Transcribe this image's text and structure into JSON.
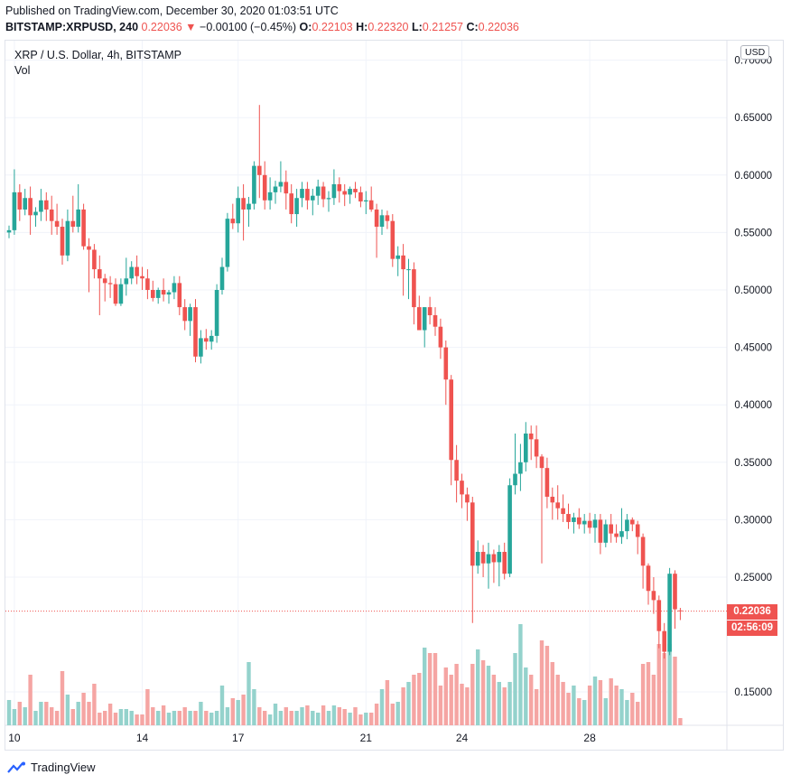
{
  "header": {
    "published": "Published on TradingView.com, December 30, 2020 01:03:51 UTC",
    "symbol_line": "BITSTAMP:XRPUSD, 240",
    "last": "0.22036",
    "change": "−0.00100 (−0.45%)",
    "o_label": "O:",
    "o_value": "0.22103",
    "h_label": "H:",
    "h_value": "0.22320",
    "l_label": "L:",
    "l_value": "0.21257",
    "c_label": "C:",
    "c_value": "0.22036"
  },
  "chart_title": "XRP / U.S. Dollar, 4h, BITSTAMP",
  "volume_label": "Vol",
  "currency_button": "USD",
  "price_tag": "0.22036",
  "countdown_tag": "02:56:09",
  "logo_text": "TradingView",
  "colors": {
    "up": "#26a69a",
    "down": "#ef5350",
    "up_vol": "#94d2cc",
    "down_vol": "#f5a5a3",
    "grid": "#f0f3fa"
  },
  "chart_data": {
    "type": "candlestick",
    "title": "XRP / U.S. Dollar, 4h, BITSTAMP",
    "y_ticks": [
      "0.70000",
      "0.65000",
      "0.60000",
      "0.55000",
      "0.50000",
      "0.45000",
      "0.40000",
      "0.35000",
      "0.30000",
      "0.25000",
      "0.15000"
    ],
    "y_tick_values": [
      0.7,
      0.65,
      0.6,
      0.55,
      0.5,
      0.45,
      0.4,
      0.35,
      0.3,
      0.25,
      0.15
    ],
    "x_ticks": [
      "10",
      "14",
      "17",
      "21",
      "24",
      "28"
    ],
    "x_tick_bar_index": [
      1,
      25,
      43,
      67,
      85,
      109
    ],
    "ylim": [
      0.124,
      0.712
    ],
    "last_price": 0.22036,
    "candles": [
      [
        0.55,
        0.556,
        0.545,
        0.552
      ],
      [
        0.552,
        0.605,
        0.548,
        0.585
      ],
      [
        0.585,
        0.592,
        0.56,
        0.57
      ],
      [
        0.57,
        0.588,
        0.565,
        0.58
      ],
      [
        0.58,
        0.59,
        0.548,
        0.565
      ],
      [
        0.565,
        0.572,
        0.555,
        0.568
      ],
      [
        0.568,
        0.588,
        0.56,
        0.578
      ],
      [
        0.578,
        0.585,
        0.56,
        0.57
      ],
      [
        0.57,
        0.582,
        0.548,
        0.56
      ],
      [
        0.56,
        0.575,
        0.548,
        0.555
      ],
      [
        0.555,
        0.562,
        0.522,
        0.53
      ],
      [
        0.53,
        0.57,
        0.525,
        0.56
      ],
      [
        0.56,
        0.582,
        0.55,
        0.555
      ],
      [
        0.555,
        0.592,
        0.55,
        0.57
      ],
      [
        0.57,
        0.575,
        0.535,
        0.538
      ],
      [
        0.538,
        0.545,
        0.498,
        0.535
      ],
      [
        0.535,
        0.54,
        0.51,
        0.518
      ],
      [
        0.518,
        0.53,
        0.478,
        0.51
      ],
      [
        0.51,
        0.514,
        0.49,
        0.506
      ],
      [
        0.506,
        0.512,
        0.493,
        0.505
      ],
      [
        0.505,
        0.51,
        0.486,
        0.488
      ],
      [
        0.488,
        0.51,
        0.486,
        0.505
      ],
      [
        0.505,
        0.528,
        0.495,
        0.51
      ],
      [
        0.51,
        0.525,
        0.505,
        0.52
      ],
      [
        0.52,
        0.53,
        0.505,
        0.512
      ],
      [
        0.512,
        0.52,
        0.5,
        0.51
      ],
      [
        0.51,
        0.518,
        0.492,
        0.5
      ],
      [
        0.5,
        0.508,
        0.49,
        0.493
      ],
      [
        0.493,
        0.502,
        0.488,
        0.5
      ],
      [
        0.5,
        0.51,
        0.49,
        0.496
      ],
      [
        0.496,
        0.5,
        0.488,
        0.498
      ],
      [
        0.498,
        0.512,
        0.492,
        0.506
      ],
      [
        0.506,
        0.512,
        0.478,
        0.485
      ],
      [
        0.485,
        0.492,
        0.465,
        0.473
      ],
      [
        0.473,
        0.488,
        0.46,
        0.485
      ],
      [
        0.485,
        0.492,
        0.437,
        0.442
      ],
      [
        0.442,
        0.465,
        0.436,
        0.458
      ],
      [
        0.458,
        0.466,
        0.448,
        0.455
      ],
      [
        0.455,
        0.465,
        0.448,
        0.46
      ],
      [
        0.46,
        0.505,
        0.454,
        0.5
      ],
      [
        0.5,
        0.528,
        0.496,
        0.52
      ],
      [
        0.52,
        0.567,
        0.516,
        0.562
      ],
      [
        0.562,
        0.575,
        0.553,
        0.558
      ],
      [
        0.558,
        0.59,
        0.55,
        0.58
      ],
      [
        0.58,
        0.592,
        0.543,
        0.57
      ],
      [
        0.57,
        0.581,
        0.555,
        0.575
      ],
      [
        0.575,
        0.612,
        0.57,
        0.608
      ],
      [
        0.608,
        0.661,
        0.58,
        0.6
      ],
      [
        0.6,
        0.612,
        0.57,
        0.578
      ],
      [
        0.578,
        0.598,
        0.57,
        0.585
      ],
      [
        0.585,
        0.595,
        0.575,
        0.59
      ],
      [
        0.59,
        0.612,
        0.585,
        0.594
      ],
      [
        0.594,
        0.604,
        0.57,
        0.584
      ],
      [
        0.584,
        0.592,
        0.558,
        0.566
      ],
      [
        0.566,
        0.588,
        0.555,
        0.58
      ],
      [
        0.58,
        0.594,
        0.572,
        0.588
      ],
      [
        0.588,
        0.594,
        0.57,
        0.578
      ],
      [
        0.578,
        0.588,
        0.565,
        0.582
      ],
      [
        0.582,
        0.596,
        0.574,
        0.59
      ],
      [
        0.59,
        0.594,
        0.572,
        0.579
      ],
      [
        0.579,
        0.586,
        0.568,
        0.58
      ],
      [
        0.58,
        0.605,
        0.574,
        0.592
      ],
      [
        0.592,
        0.598,
        0.576,
        0.586
      ],
      [
        0.586,
        0.592,
        0.573,
        0.583
      ],
      [
        0.583,
        0.59,
        0.575,
        0.588
      ],
      [
        0.588,
        0.594,
        0.58,
        0.585
      ],
      [
        0.585,
        0.59,
        0.572,
        0.577
      ],
      [
        0.577,
        0.586,
        0.566,
        0.578
      ],
      [
        0.578,
        0.59,
        0.568,
        0.57
      ],
      [
        0.57,
        0.575,
        0.528,
        0.555
      ],
      [
        0.555,
        0.57,
        0.548,
        0.565
      ],
      [
        0.565,
        0.569,
        0.553,
        0.56
      ],
      [
        0.56,
        0.566,
        0.52,
        0.527
      ],
      [
        0.527,
        0.538,
        0.512,
        0.53
      ],
      [
        0.53,
        0.54,
        0.495,
        0.518
      ],
      [
        0.518,
        0.527,
        0.492,
        0.518
      ],
      [
        0.518,
        0.524,
        0.47,
        0.485
      ],
      [
        0.485,
        0.495,
        0.465,
        0.465
      ],
      [
        0.465,
        0.485,
        0.45,
        0.485
      ],
      [
        0.485,
        0.494,
        0.47,
        0.478
      ],
      [
        0.478,
        0.485,
        0.46,
        0.468
      ],
      [
        0.468,
        0.475,
        0.44,
        0.45
      ],
      [
        0.45,
        0.456,
        0.4,
        0.422
      ],
      [
        0.422,
        0.426,
        0.33,
        0.352
      ],
      [
        0.352,
        0.365,
        0.315,
        0.334
      ],
      [
        0.334,
        0.34,
        0.31,
        0.322
      ],
      [
        0.322,
        0.328,
        0.299,
        0.315
      ],
      [
        0.315,
        0.32,
        0.21,
        0.26
      ],
      [
        0.26,
        0.282,
        0.253,
        0.272
      ],
      [
        0.272,
        0.278,
        0.25,
        0.262
      ],
      [
        0.262,
        0.28,
        0.24,
        0.27
      ],
      [
        0.27,
        0.274,
        0.245,
        0.263
      ],
      [
        0.263,
        0.278,
        0.242,
        0.272
      ],
      [
        0.272,
        0.28,
        0.248,
        0.253
      ],
      [
        0.253,
        0.336,
        0.25,
        0.33
      ],
      [
        0.33,
        0.375,
        0.322,
        0.34
      ],
      [
        0.34,
        0.366,
        0.325,
        0.35
      ],
      [
        0.35,
        0.385,
        0.342,
        0.375
      ],
      [
        0.375,
        0.382,
        0.352,
        0.37
      ],
      [
        0.37,
        0.382,
        0.345,
        0.355
      ],
      [
        0.355,
        0.357,
        0.262,
        0.345
      ],
      [
        0.345,
        0.354,
        0.31,
        0.32
      ],
      [
        0.32,
        0.328,
        0.3,
        0.315
      ],
      [
        0.315,
        0.33,
        0.3,
        0.31
      ],
      [
        0.31,
        0.322,
        0.298,
        0.305
      ],
      [
        0.305,
        0.314,
        0.292,
        0.298
      ],
      [
        0.298,
        0.306,
        0.288,
        0.302
      ],
      [
        0.302,
        0.31,
        0.292,
        0.296
      ],
      [
        0.296,
        0.305,
        0.288,
        0.299
      ],
      [
        0.299,
        0.306,
        0.288,
        0.293
      ],
      [
        0.293,
        0.305,
        0.28,
        0.3
      ],
      [
        0.3,
        0.305,
        0.27,
        0.28
      ],
      [
        0.28,
        0.3,
        0.276,
        0.296
      ],
      [
        0.296,
        0.305,
        0.28,
        0.288
      ],
      [
        0.288,
        0.296,
        0.28,
        0.285
      ],
      [
        0.285,
        0.31,
        0.279,
        0.29
      ],
      [
        0.29,
        0.305,
        0.283,
        0.3
      ],
      [
        0.3,
        0.302,
        0.29,
        0.296
      ],
      [
        0.296,
        0.299,
        0.27,
        0.285
      ],
      [
        0.285,
        0.288,
        0.24,
        0.26
      ],
      [
        0.26,
        0.262,
        0.226,
        0.238
      ],
      [
        0.238,
        0.25,
        0.218,
        0.23
      ],
      [
        0.23,
        0.234,
        0.188,
        0.203
      ],
      [
        0.203,
        0.21,
        0.179,
        0.185
      ],
      [
        0.185,
        0.258,
        0.182,
        0.253
      ],
      [
        0.253,
        0.256,
        0.205,
        0.222
      ],
      [
        0.221,
        0.2232,
        0.2126,
        0.2204
      ]
    ],
    "volume": [
      14,
      9,
      13,
      10,
      28,
      8,
      13,
      13,
      10,
      8,
      30,
      17,
      9,
      13,
      18,
      13,
      23,
      7,
      8,
      12,
      7,
      9,
      9,
      8,
      6,
      6,
      20,
      10,
      8,
      11,
      7,
      8,
      8,
      10,
      8,
      8,
      13,
      8,
      7,
      8,
      22,
      10,
      15,
      14,
      17,
      35,
      20,
      10,
      8,
      6,
      12,
      8,
      10,
      8,
      8,
      10,
      11,
      8,
      7,
      11,
      8,
      11,
      10,
      9,
      7,
      10,
      6,
      7,
      7,
      12,
      20,
      25,
      12,
      13,
      21,
      24,
      28,
      29,
      43,
      40,
      40,
      22,
      32,
      28,
      34,
      23,
      21,
      34,
      42,
      36,
      33,
      28,
      24,
      21,
      24,
      40,
      56,
      32,
      28,
      20,
      47,
      44,
      35,
      28,
      24,
      18,
      22,
      15,
      14,
      22,
      27,
      25,
      15,
      26,
      22,
      20,
      14,
      18,
      13,
      34,
      35,
      28,
      45,
      40,
      45,
      38,
      4
    ]
  }
}
